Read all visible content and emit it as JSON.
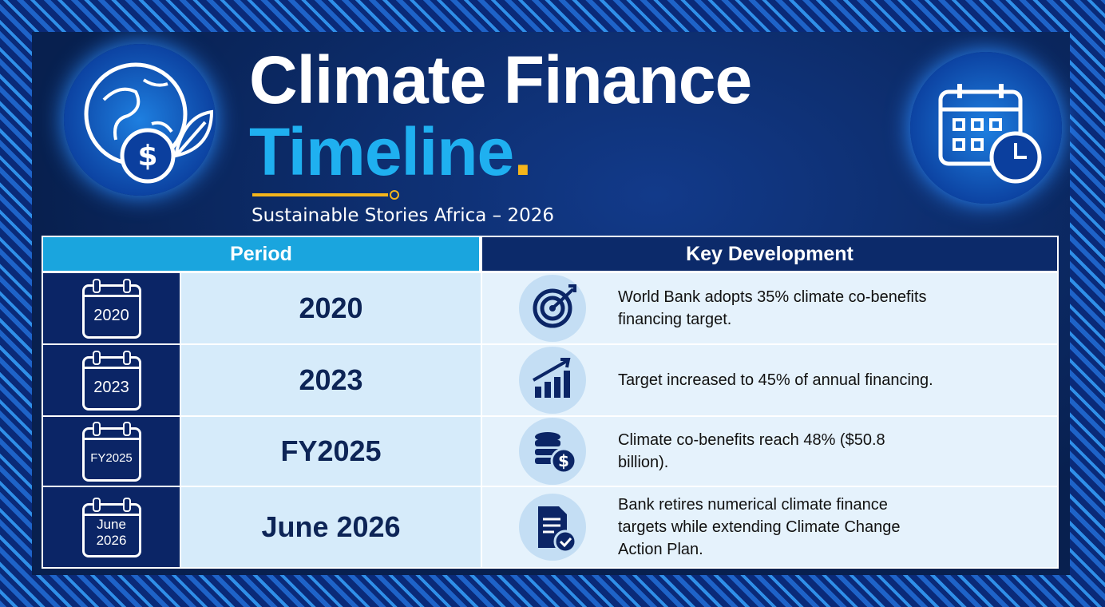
{
  "header": {
    "title_line1": "Climate Finance",
    "title_line2": "Timeline",
    "title_accent": ".",
    "subtitle": "Sustainable Stories Africa – 2026"
  },
  "table": {
    "columns": [
      "Period",
      "Key Development"
    ],
    "rows": [
      {
        "icon_label": [
          "2020"
        ],
        "period": "2020",
        "development": "World Bank adopts 35% climate co-benefits financing target."
      },
      {
        "icon_label": [
          "2023"
        ],
        "period": "2023",
        "development": "Target increased to 45% of annual financing."
      },
      {
        "icon_label": [
          "FY2025"
        ],
        "period": "FY2025",
        "development": "Climate co-benefits reach 48% ($50.8 billion)."
      },
      {
        "icon_label": [
          "June",
          "2026"
        ],
        "period": "June 2026",
        "development": "Bank retires numerical climate finance targets while extending Climate Change Action Plan."
      }
    ]
  }
}
